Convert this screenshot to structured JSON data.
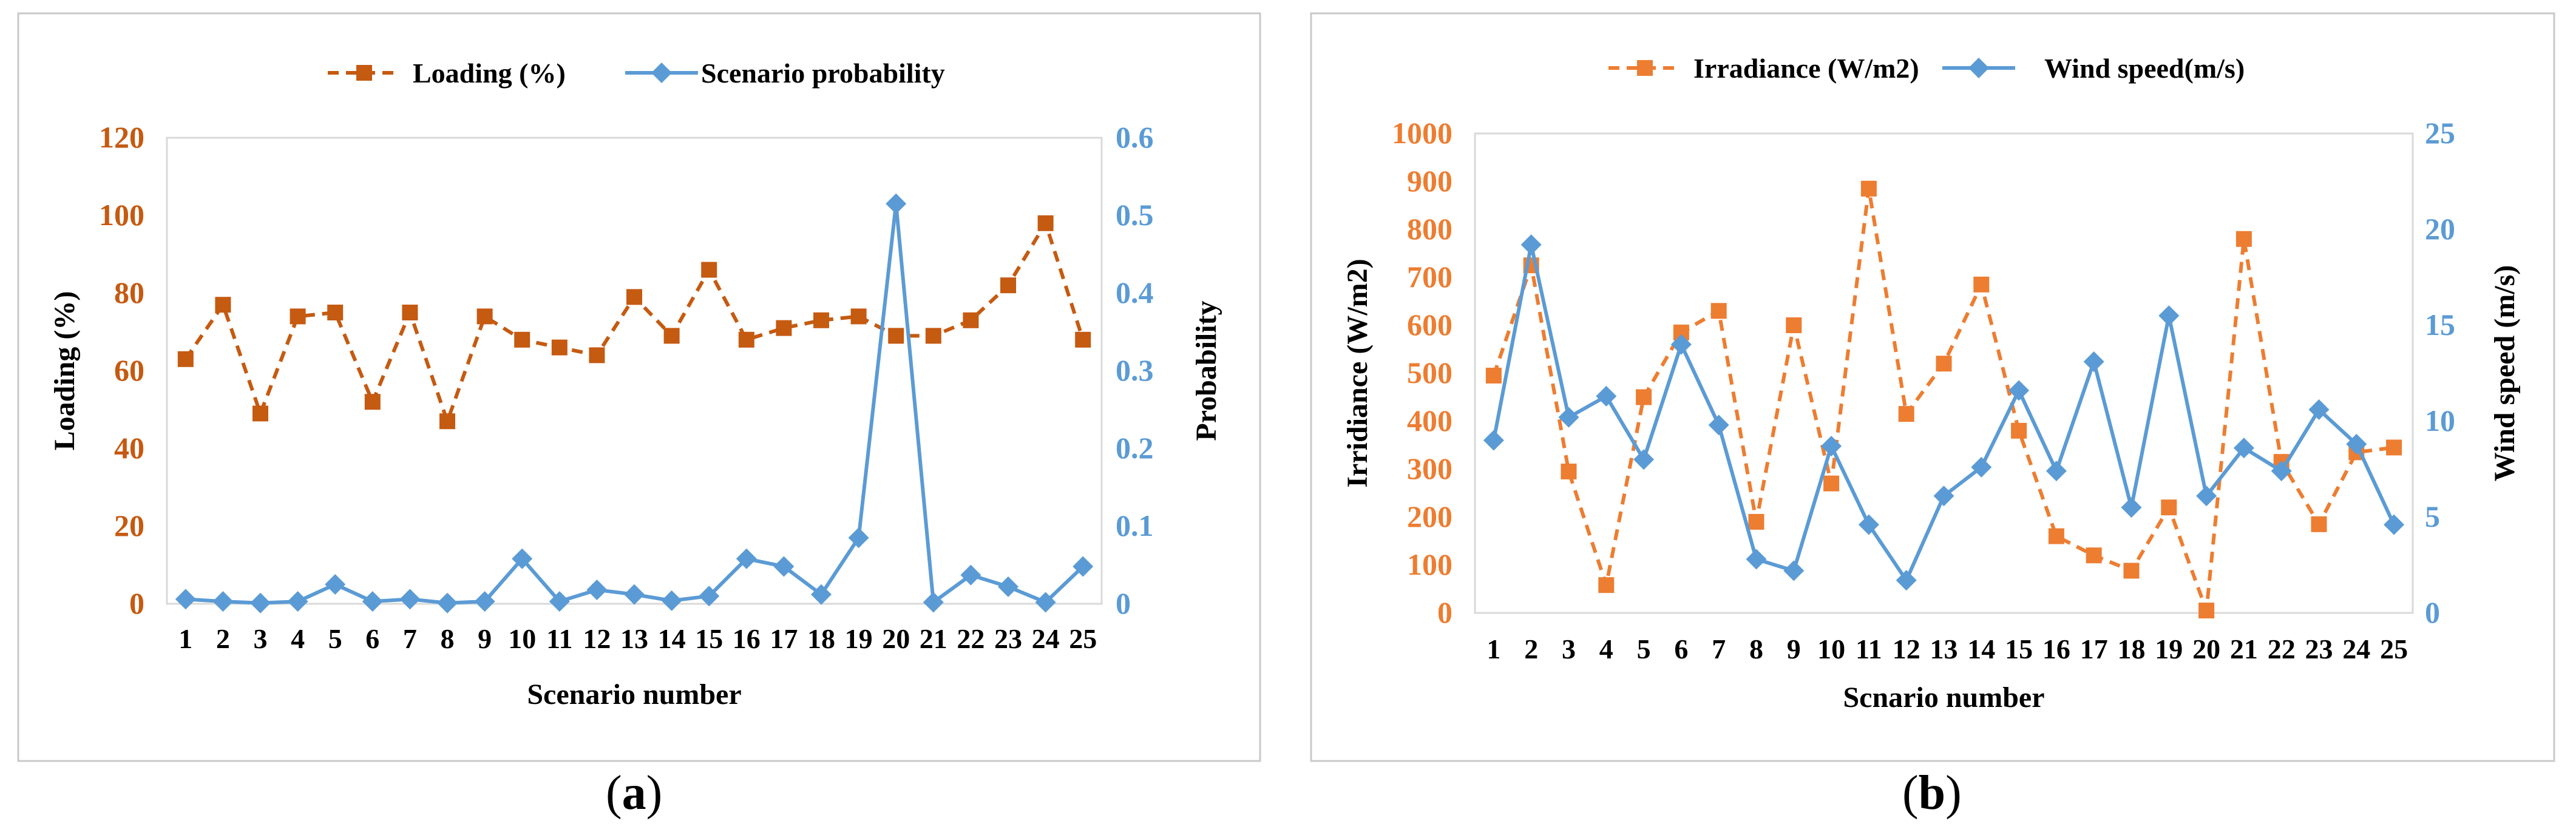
{
  "panels": [
    {
      "label_open": "(",
      "label_letter": "a",
      "label_close": ")"
    },
    {
      "label_open": "(",
      "label_letter": "b",
      "label_close": ")"
    }
  ],
  "chart_data": [
    {
      "type": "line",
      "title": "",
      "xlabel": "Scenario number",
      "ylabel": "Loading  (%)",
      "ylabel2": "Probability",
      "ylim": [
        0,
        120
      ],
      "y_ticks": [
        "0",
        "20",
        "40",
        "60",
        "80",
        "100",
        "120"
      ],
      "ylim2": [
        0,
        0.6
      ],
      "y2_ticks": [
        "0",
        "0.1",
        "0.2",
        "0.3",
        "0.4",
        "0.5",
        "0.6"
      ],
      "categories": [
        "1",
        "2",
        "3",
        "4",
        "5",
        "6",
        "7",
        "8",
        "9",
        "10",
        "11",
        "12",
        "13",
        "14",
        "15",
        "16",
        "17",
        "18",
        "19",
        "20",
        "21",
        "22",
        "23",
        "24",
        "25"
      ],
      "legend_position": "top",
      "series": [
        {
          "name": "Loading (%)",
          "axis": "left",
          "marker": "square",
          "dash": true,
          "color": "#C55A11",
          "values": [
            63,
            77,
            49,
            74,
            75,
            52,
            75,
            47,
            74,
            68,
            66,
            64,
            79,
            69,
            86,
            68,
            71,
            73,
            74,
            69,
            69,
            73,
            82,
            98,
            68
          ]
        },
        {
          "name": "Scenario probability",
          "axis": "right",
          "marker": "diamond",
          "dash": false,
          "color": "#5B9BD5",
          "values": [
            0.006,
            0.003,
            0.001,
            0.003,
            0.025,
            0.003,
            0.006,
            0.001,
            0.003,
            0.058,
            0.003,
            0.018,
            0.012,
            0.004,
            0.01,
            0.058,
            0.048,
            0.012,
            0.085,
            0.515,
            0.002,
            0.037,
            0.022,
            0.002,
            0.048
          ]
        }
      ]
    },
    {
      "type": "line",
      "title": "",
      "xlabel": "Scnario number",
      "ylabel": "Irridiance  (W/m2)",
      "ylabel2": "Wind  speed  (m/s)",
      "ylim": [
        0,
        1000
      ],
      "y_ticks": [
        "0",
        "100",
        "200",
        "300",
        "400",
        "500",
        "600",
        "700",
        "800",
        "900",
        "1000"
      ],
      "ylim2": [
        0,
        25
      ],
      "y2_ticks": [
        "0",
        "5",
        "10",
        "15",
        "20",
        "25"
      ],
      "categories": [
        "1",
        "2",
        "3",
        "4",
        "5",
        "6",
        "7",
        "8",
        "9",
        "10",
        "11",
        "12",
        "13",
        "14",
        "15",
        "16",
        "17",
        "18",
        "19",
        "20",
        "21",
        "22",
        "23",
        "24",
        "25"
      ],
      "legend_position": "top",
      "series": [
        {
          "name": "Irradiance (W/m2)",
          "axis": "left",
          "marker": "square",
          "dash": true,
          "color": "#ED7D31",
          "values": [
            495,
            725,
            295,
            58,
            450,
            585,
            630,
            190,
            600,
            270,
            885,
            415,
            520,
            685,
            380,
            160,
            120,
            88,
            220,
            5,
            780,
            315,
            185,
            335,
            345
          ]
        },
        {
          "name": "Wind speed(m/s)",
          "axis": "right",
          "marker": "diamond",
          "dash": false,
          "color": "#5B9BD5",
          "values": [
            9.0,
            19.2,
            10.2,
            11.3,
            8.0,
            14.0,
            9.8,
            2.8,
            2.2,
            8.7,
            4.6,
            1.7,
            6.1,
            7.6,
            11.6,
            7.4,
            13.1,
            5.5,
            15.5,
            6.1,
            8.6,
            7.4,
            10.6,
            8.8,
            4.6
          ]
        }
      ]
    }
  ]
}
